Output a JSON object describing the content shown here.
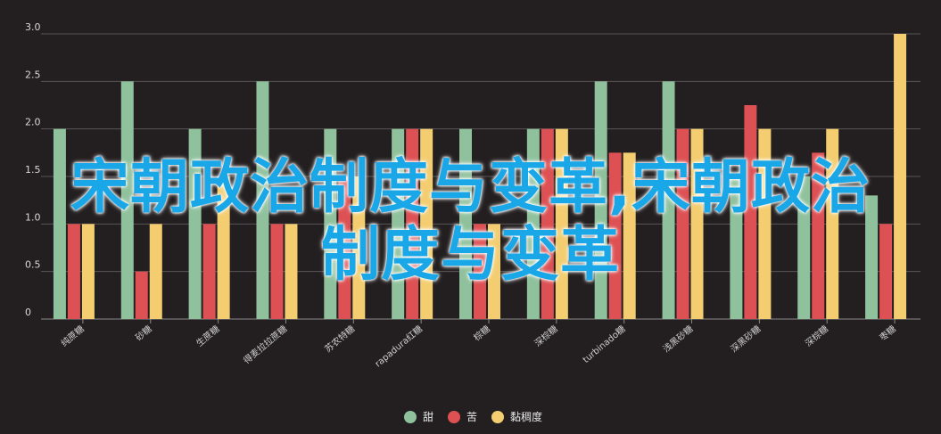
{
  "chart_data": {
    "type": "bar",
    "categories": [
      "纯蔗糖",
      "砂糖",
      "生蔗糖",
      "得麦拉拉蔗糖",
      "苏农特糖",
      "rapadura红糖",
      "棕糖",
      "深棕糖",
      "turbinado糖",
      "浅黑砂糖",
      "深黑砂糖",
      "深棕糖",
      "枣糖"
    ],
    "series": [
      {
        "name": "甜",
        "color": "#8fc19c",
        "values": [
          2.0,
          2.5,
          2.0,
          2.5,
          2.0,
          2.0,
          2.0,
          2.0,
          2.5,
          2.5,
          1.5,
          1.5,
          1.3
        ]
      },
      {
        "name": "苦",
        "color": "#dd5053",
        "values": [
          1.0,
          0.5,
          1.0,
          1.0,
          1.5,
          2.0,
          1.0,
          2.0,
          1.75,
          2.0,
          2.25,
          1.75,
          1.0
        ]
      },
      {
        "name": "黏稠度",
        "color": "#f3cd6f",
        "values": [
          1.0,
          1.0,
          1.5,
          1.0,
          1.5,
          2.0,
          1.0,
          2.0,
          1.75,
          2.0,
          2.0,
          2.0,
          3.0
        ]
      }
    ],
    "yticks": [
      "0",
      "0.5",
      "1.0",
      "1.5",
      "2.0",
      "2.5",
      "3.0"
    ],
    "ylim": [
      0,
      3
    ],
    "grid": true,
    "legend": "bottom-center"
  },
  "overlay_text": {
    "line1": "宋朝政治制度与变革,宋朝政治",
    "line2": "制度与变革"
  }
}
